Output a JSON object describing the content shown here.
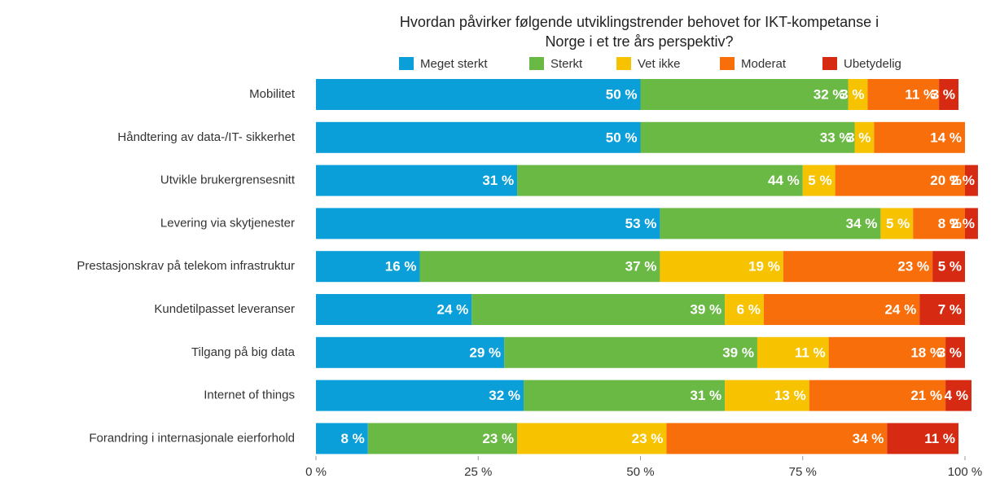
{
  "chart_data": {
    "type": "stacked_bar_horizontal",
    "title": [
      "Hvordan påvirker følgende utviklingstrender behovet for IKT-kompetanse i",
      "Norge i et tre års perspektiv?"
    ],
    "categories": [
      "Mobilitet",
      "Håndtering av data-/IT- sikkerhet",
      "Utvikle brukergrensesnitt",
      "Levering via skytjenester",
      "Prestasjonskrav på telekom infrastruktur",
      "Kundetilpasset leveranser",
      "Tilgang på big data",
      "Internet of things",
      "Forandring i internasjonale eierforhold"
    ],
    "series": [
      {
        "name": "Meget sterkt",
        "color": "#0a9fd8",
        "values": [
          50,
          50,
          31,
          53,
          16,
          24,
          29,
          32,
          8
        ],
        "value_labels": [
          "50 %",
          "50 %",
          "31 %",
          "53 %",
          "16 %",
          "24 %",
          "29 %",
          "32 %",
          "8 %"
        ]
      },
      {
        "name": "Sterkt",
        "color": "#6ab945",
        "values": [
          32,
          33,
          44,
          34,
          37,
          39,
          39,
          31,
          23
        ],
        "value_labels": [
          "32 %",
          "33 %",
          "44 %",
          "34 %",
          "37 %",
          "39 %",
          "39 %",
          "31 %",
          "23 %"
        ]
      },
      {
        "name": "Vet ikke",
        "color": "#f7c200",
        "values": [
          3,
          3,
          5,
          5,
          19,
          6,
          11,
          13,
          23
        ],
        "value_labels": [
          "3 %",
          "3 %",
          "5 %",
          "5 %",
          "19 %",
          "6 %",
          "11 %",
          "13 %",
          "23 %"
        ]
      },
      {
        "name": "Moderat",
        "color": "#f76e0a",
        "values": [
          11,
          14,
          20,
          8,
          23,
          24,
          18,
          21,
          34
        ],
        "value_labels": [
          "11 %",
          "14 %",
          "20 %",
          "8 %",
          "23 %",
          "24 %",
          "18 %",
          "21 %",
          "34 %"
        ]
      },
      {
        "name": "Ubetydelig",
        "color": "#d62a12",
        "values": [
          3,
          null,
          2,
          2,
          5,
          7,
          3,
          4,
          11
        ],
        "value_labels": [
          "3 %",
          null,
          "2 %",
          "2 %",
          "5 %",
          "7 %",
          "3 %",
          "4 %",
          "11 %"
        ]
      }
    ],
    "xlim": [
      0,
      100
    ],
    "xticks": [
      {
        "value": 0,
        "label": "0 %"
      },
      {
        "value": 25,
        "label": "25 %"
      },
      {
        "value": 50,
        "label": "50 %"
      },
      {
        "value": 75,
        "label": "75 %"
      },
      {
        "value": 100,
        "label": "100 %"
      }
    ]
  }
}
